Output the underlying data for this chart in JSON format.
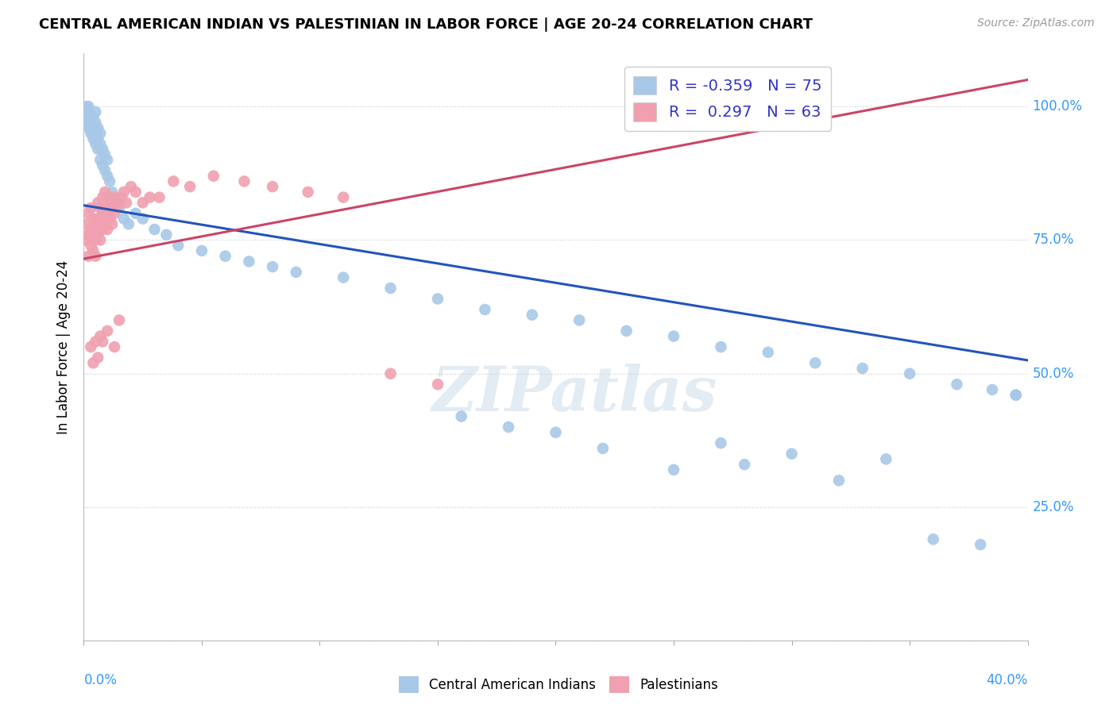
{
  "title": "CENTRAL AMERICAN INDIAN VS PALESTINIAN IN LABOR FORCE | AGE 20-24 CORRELATION CHART",
  "source": "Source: ZipAtlas.com",
  "ylabel": "In Labor Force | Age 20-24",
  "xmin": 0.0,
  "xmax": 0.4,
  "ymin": 0.0,
  "ymax": 1.1,
  "blue_color": "#a8c8e8",
  "pink_color": "#f0a0b0",
  "blue_line_color": "#2255bb",
  "pink_line_color": "#cc4466",
  "watermark": "ZIPatlas",
  "legend_blue_label": "R = -0.359   N = 75",
  "legend_pink_label": "R =  0.297   N = 63",
  "legend_blue_patch": "#a8c8e8",
  "legend_pink_patch": "#f0a0b0",
  "legend_text_color": "#3333cc",
  "right_tick_color": "#3399ff",
  "source_color": "#999999",
  "blue_trend_x0": 0.0,
  "blue_trend_y0": 0.815,
  "blue_trend_x1": 0.4,
  "blue_trend_y1": 0.525,
  "pink_trend_x0": 0.0,
  "pink_trend_y0": 0.715,
  "pink_trend_x1": 0.4,
  "pink_trend_y1": 1.05,
  "blue_x": [
    0.001,
    0.001,
    0.002,
    0.002,
    0.002,
    0.002,
    0.003,
    0.003,
    0.003,
    0.003,
    0.004,
    0.004,
    0.004,
    0.005,
    0.005,
    0.005,
    0.005,
    0.006,
    0.006,
    0.006,
    0.007,
    0.007,
    0.007,
    0.008,
    0.008,
    0.009,
    0.009,
    0.01,
    0.01,
    0.011,
    0.012,
    0.013,
    0.014,
    0.015,
    0.017,
    0.019,
    0.022,
    0.025,
    0.03,
    0.035,
    0.04,
    0.05,
    0.06,
    0.07,
    0.08,
    0.09,
    0.11,
    0.13,
    0.15,
    0.17,
    0.19,
    0.21,
    0.23,
    0.25,
    0.27,
    0.29,
    0.31,
    0.33,
    0.35,
    0.37,
    0.385,
    0.395,
    0.27,
    0.3,
    0.34,
    0.2,
    0.25,
    0.16,
    0.18,
    0.22,
    0.28,
    0.32,
    0.36,
    0.38,
    0.395
  ],
  "blue_y": [
    0.98,
    1.0,
    0.97,
    0.99,
    0.96,
    1.0,
    0.96,
    0.98,
    0.95,
    0.97,
    0.94,
    0.96,
    0.98,
    0.93,
    0.95,
    0.97,
    0.99,
    0.92,
    0.94,
    0.96,
    0.9,
    0.93,
    0.95,
    0.89,
    0.92,
    0.88,
    0.91,
    0.87,
    0.9,
    0.86,
    0.84,
    0.83,
    0.82,
    0.81,
    0.79,
    0.78,
    0.8,
    0.79,
    0.77,
    0.76,
    0.74,
    0.73,
    0.72,
    0.71,
    0.7,
    0.69,
    0.68,
    0.66,
    0.64,
    0.62,
    0.61,
    0.6,
    0.58,
    0.57,
    0.55,
    0.54,
    0.52,
    0.51,
    0.5,
    0.48,
    0.47,
    0.46,
    0.37,
    0.35,
    0.34,
    0.39,
    0.32,
    0.42,
    0.4,
    0.36,
    0.33,
    0.3,
    0.19,
    0.18,
    0.46
  ],
  "pink_x": [
    0.001,
    0.001,
    0.002,
    0.002,
    0.002,
    0.003,
    0.003,
    0.003,
    0.004,
    0.004,
    0.004,
    0.005,
    0.005,
    0.005,
    0.006,
    0.006,
    0.006,
    0.007,
    0.007,
    0.007,
    0.008,
    0.008,
    0.008,
    0.009,
    0.009,
    0.009,
    0.01,
    0.01,
    0.01,
    0.011,
    0.011,
    0.012,
    0.012,
    0.013,
    0.013,
    0.014,
    0.015,
    0.016,
    0.017,
    0.018,
    0.02,
    0.022,
    0.025,
    0.028,
    0.032,
    0.038,
    0.045,
    0.055,
    0.068,
    0.08,
    0.095,
    0.11,
    0.13,
    0.15,
    0.003,
    0.004,
    0.005,
    0.006,
    0.007,
    0.008,
    0.01,
    0.013,
    0.015
  ],
  "pink_y": [
    0.75,
    0.78,
    0.72,
    0.76,
    0.8,
    0.74,
    0.77,
    0.81,
    0.73,
    0.76,
    0.79,
    0.72,
    0.75,
    0.78,
    0.76,
    0.79,
    0.82,
    0.75,
    0.78,
    0.81,
    0.77,
    0.8,
    0.83,
    0.78,
    0.81,
    0.84,
    0.77,
    0.8,
    0.83,
    0.79,
    0.82,
    0.78,
    0.81,
    0.8,
    0.83,
    0.81,
    0.82,
    0.83,
    0.84,
    0.82,
    0.85,
    0.84,
    0.82,
    0.83,
    0.83,
    0.86,
    0.85,
    0.87,
    0.86,
    0.85,
    0.84,
    0.83,
    0.5,
    0.48,
    0.55,
    0.52,
    0.56,
    0.53,
    0.57,
    0.56,
    0.58,
    0.55,
    0.6
  ]
}
